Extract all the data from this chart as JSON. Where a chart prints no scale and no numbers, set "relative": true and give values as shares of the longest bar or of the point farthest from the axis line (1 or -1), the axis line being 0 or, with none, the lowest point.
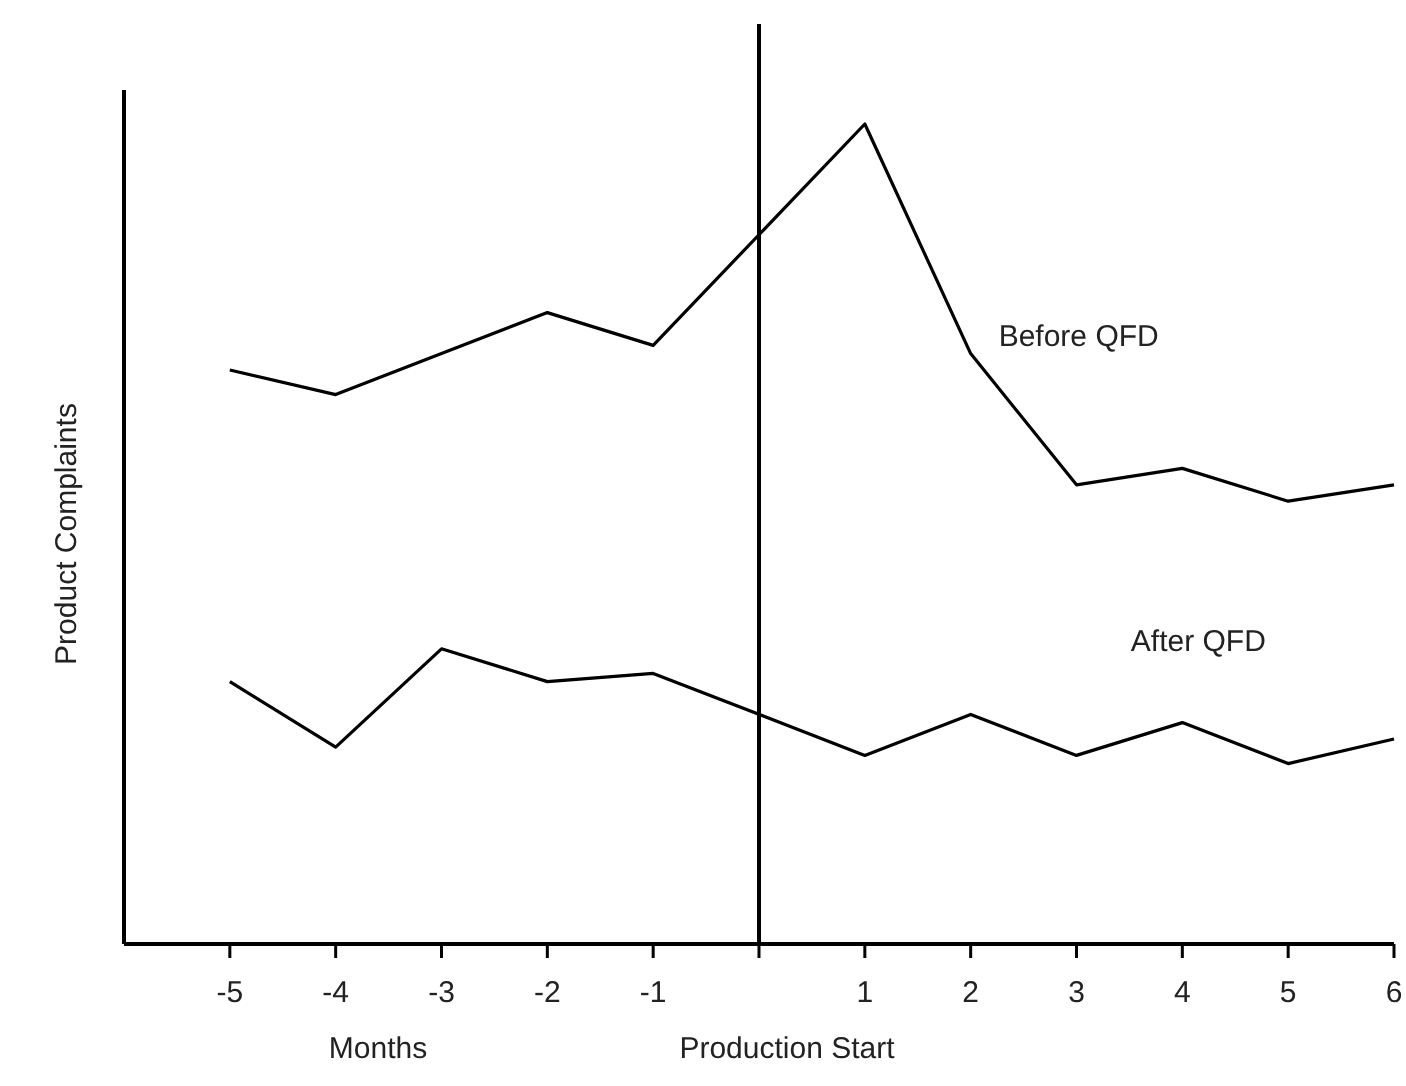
{
  "chart_data": {
    "type": "line",
    "relative": true,
    "xlabel": "Months",
    "ylabel": "Product Complaints",
    "x": [
      -5,
      -4,
      -3,
      -2,
      -1,
      1,
      2,
      3,
      4,
      5,
      6
    ],
    "xlim": [
      -6,
      6
    ],
    "xticks": [
      -5,
      -4,
      -3,
      -2,
      -1,
      {
        "value": 0,
        "label": null
      },
      1,
      2,
      3,
      4,
      5,
      6
    ],
    "series": [
      {
        "name": "Before QFD",
        "color": "#000000",
        "values": [
          0.7,
          0.67,
          0.72,
          0.77,
          0.73,
          1,
          0.72,
          0.56,
          0.58,
          0.54,
          0.56
        ]
      },
      {
        "name": "After QFD",
        "color": "#000000",
        "values": [
          0.32,
          0.24,
          0.36,
          0.32,
          0.33,
          0.23,
          0.28,
          0.23,
          0.27,
          0.22,
          0.25
        ]
      }
    ],
    "ref_lines": [
      {
        "axis": "x",
        "value": 0,
        "color": "#000000"
      }
    ],
    "annotations": [
      "Production Start"
    ],
    "grid": false,
    "marker": "none",
    "line_style": "solid"
  }
}
